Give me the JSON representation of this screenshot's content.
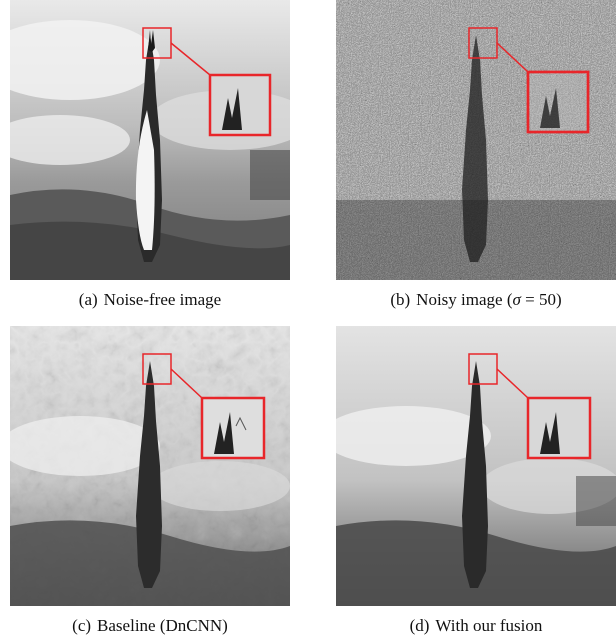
{
  "figure": {
    "panels": [
      {
        "id": "a",
        "label": "(a)",
        "caption": "Noise-free image",
        "variant": "clean"
      },
      {
        "id": "b",
        "label": "(b)",
        "caption": "Noisy image (",
        "caption_symbol": "σ",
        "caption_suffix": " = 50)",
        "variant": "noisy"
      },
      {
        "id": "c",
        "label": "(c)",
        "caption": "Baseline (DnCNN)",
        "variant": "baseline"
      },
      {
        "id": "d",
        "label": "(d)",
        "caption": "With our fusion",
        "variant": "fusion"
      }
    ],
    "zoom_box_color": "#e8262a"
  }
}
